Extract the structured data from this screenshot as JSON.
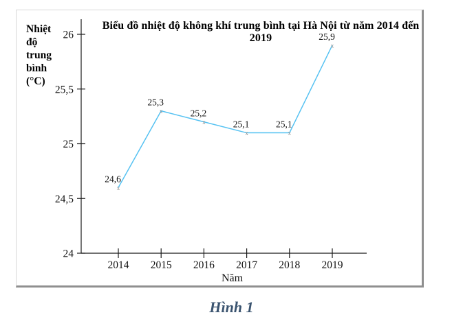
{
  "page": {
    "caption": "Hình 1"
  },
  "chart_data": {
    "type": "line",
    "title": "Biểu đồ nhiệt độ không khí trung bình tại Hà Nội từ năm 2014 đến 2019",
    "xlabel": "Năm",
    "ylabel": "Nhiệt độ trung bình (°C)",
    "ylabel_lines": "Nhiệt\nđộ\ntrung\nbình\n(°C)",
    "categories": [
      "2014",
      "2015",
      "2016",
      "2017",
      "2018",
      "2019"
    ],
    "values": [
      24.6,
      25.3,
      25.2,
      25.1,
      25.1,
      25.9
    ],
    "point_labels": [
      "24,6",
      "25,3",
      "25,2",
      "25,1",
      "25,1",
      "25,9"
    ],
    "yticks": [
      {
        "label": "26",
        "value": 26
      },
      {
        "label": "25,5",
        "value": 25.5
      },
      {
        "label": "25",
        "value": 25
      },
      {
        "label": "24,5",
        "value": 24.5
      },
      {
        "label": "24",
        "value": 24
      }
    ],
    "ylim": [
      24,
      26
    ],
    "grid": false,
    "legend": "none",
    "marker": "x",
    "line_color": "#56c2f2",
    "marker_color": "#8a8a8a"
  },
  "colors": {
    "axis": "#1a1a1a",
    "text": "#111111",
    "caption": "#3a536f"
  }
}
